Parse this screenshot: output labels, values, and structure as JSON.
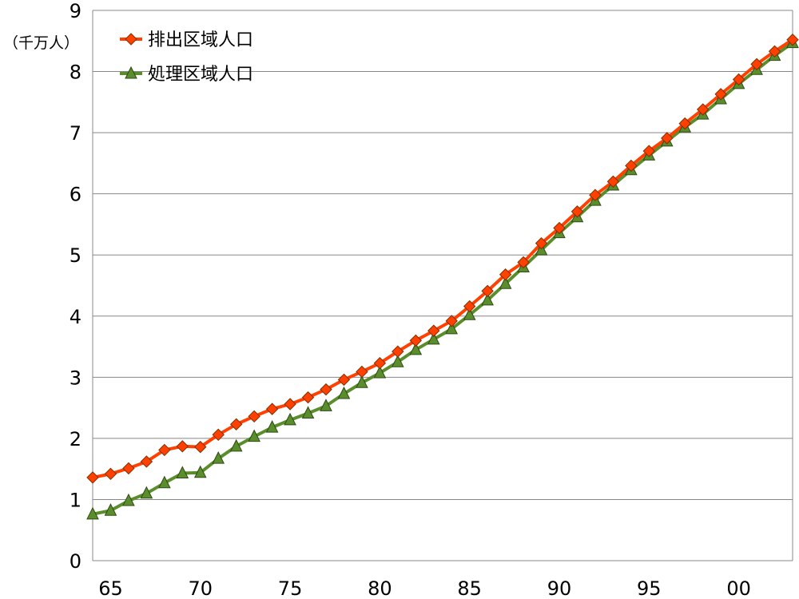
{
  "chart_data": {
    "type": "line",
    "ylabel": "（千万人）",
    "ylim": [
      0,
      9
    ],
    "yticks": [
      "0",
      "1",
      "2",
      "3",
      "4",
      "5",
      "6",
      "7",
      "8",
      "9"
    ],
    "x_start": 1964,
    "x_end": 2003,
    "xticks": [
      {
        "year": 1965,
        "label": "65"
      },
      {
        "year": 1970,
        "label": "70"
      },
      {
        "year": 1975,
        "label": "75"
      },
      {
        "year": 1980,
        "label": "80"
      },
      {
        "year": 1985,
        "label": "85"
      },
      {
        "year": 1990,
        "label": "90"
      },
      {
        "year": 1995,
        "label": "95"
      },
      {
        "year": 2000,
        "label": "00"
      }
    ],
    "grid": true,
    "legend": "top-left",
    "x": [
      1964,
      1965,
      1966,
      1967,
      1968,
      1969,
      1970,
      1971,
      1972,
      1973,
      1974,
      1975,
      1976,
      1977,
      1978,
      1979,
      1980,
      1981,
      1982,
      1983,
      1984,
      1985,
      1986,
      1987,
      1988,
      1989,
      1990,
      1991,
      1992,
      1993,
      1994,
      1995,
      1996,
      1997,
      1998,
      1999,
      2000,
      2001,
      2002,
      2003
    ],
    "series": [
      {
        "name": "排出区域人口",
        "color": "#ff4000",
        "marker": "diamond",
        "values": [
          1.36,
          1.42,
          1.51,
          1.62,
          1.81,
          1.87,
          1.86,
          2.06,
          2.23,
          2.36,
          2.48,
          2.56,
          2.67,
          2.8,
          2.96,
          3.09,
          3.23,
          3.42,
          3.6,
          3.76,
          3.92,
          4.16,
          4.41,
          4.68,
          4.88,
          5.19,
          5.44,
          5.71,
          5.98,
          6.2,
          6.46,
          6.7,
          6.91,
          7.15,
          7.38,
          7.63,
          7.87,
          8.12,
          8.33,
          8.52
        ]
      },
      {
        "name": "処理区域人口",
        "color": "#5a8e2c",
        "marker": "triangle",
        "values": [
          0.76,
          0.82,
          0.98,
          1.1,
          1.27,
          1.43,
          1.44,
          1.67,
          1.87,
          2.03,
          2.18,
          2.3,
          2.41,
          2.53,
          2.73,
          2.91,
          3.07,
          3.25,
          3.45,
          3.62,
          3.79,
          4.02,
          4.26,
          4.53,
          4.8,
          5.08,
          5.36,
          5.62,
          5.89,
          6.14,
          6.39,
          6.63,
          6.86,
          7.09,
          7.3,
          7.55,
          7.8,
          8.03,
          8.26,
          8.47
        ]
      }
    ]
  }
}
